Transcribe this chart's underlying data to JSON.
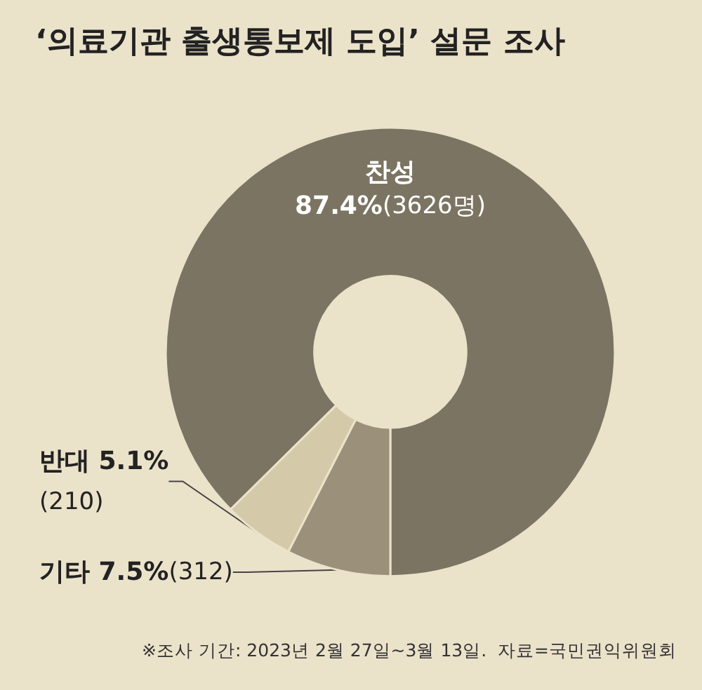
{
  "chart_data": {
    "type": "donut",
    "title": "‘의료기관 출생통보제 도입’ 설문 조사",
    "categories": [
      "찬성",
      "반대",
      "기타"
    ],
    "values": [
      87.4,
      5.1,
      7.5
    ],
    "colors": [
      "#7b7462",
      "#d4caa9",
      "#9b907a"
    ],
    "value_labels": [
      "87.4%(3626명)",
      "5.1%(210)",
      "7.5%(312)"
    ],
    "annotations": [
      "※조사 기간: 2023년 2월 27일~3월 13일.  자료=국민권익위원회"
    ]
  }
}
